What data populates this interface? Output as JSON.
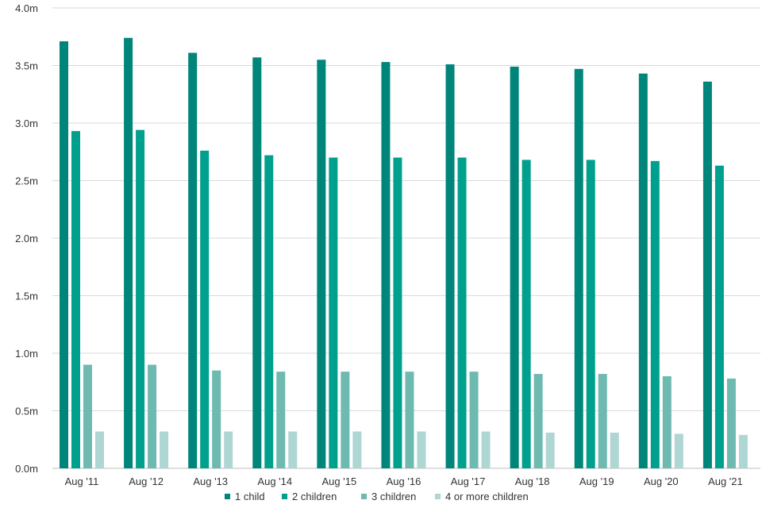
{
  "chart_data": {
    "type": "bar",
    "categories": [
      "Aug '11",
      "Aug '12",
      "Aug '13",
      "Aug '14",
      "Aug '15",
      "Aug '16",
      "Aug '17",
      "Aug '18",
      "Aug '19",
      "Aug '20",
      "Aug '21"
    ],
    "series": [
      {
        "name": "1 child",
        "color": "#00857a",
        "values": [
          3.71,
          3.74,
          3.61,
          3.57,
          3.55,
          3.53,
          3.51,
          3.49,
          3.47,
          3.43,
          3.36
        ]
      },
      {
        "name": "2 children",
        "color": "#00a08e",
        "values": [
          2.93,
          2.94,
          2.76,
          2.72,
          2.7,
          2.7,
          2.7,
          2.68,
          2.68,
          2.67,
          2.63
        ]
      },
      {
        "name": "3 children",
        "color": "#6eb9b0",
        "values": [
          0.9,
          0.9,
          0.85,
          0.84,
          0.84,
          0.84,
          0.84,
          0.82,
          0.82,
          0.8,
          0.78
        ]
      },
      {
        "name": "4 or more children",
        "color": "#aed6d3",
        "values": [
          0.32,
          0.32,
          0.32,
          0.32,
          0.32,
          0.32,
          0.32,
          0.31,
          0.31,
          0.3,
          0.29
        ]
      }
    ],
    "y_ticks": [
      0.0,
      0.5,
      1.0,
      1.5,
      2.0,
      2.5,
      3.0,
      3.5,
      4.0
    ],
    "y_tick_labels": [
      "0.0m",
      "0.5m",
      "1.0m",
      "1.5m",
      "2.0m",
      "2.5m",
      "3.0m",
      "3.5m",
      "4.0m"
    ],
    "ylim": [
      0,
      4.0
    ],
    "title": "",
    "xlabel": "",
    "ylabel": "",
    "grid": true,
    "legend_position": "bottom",
    "grid_color": "#d9d9d9",
    "axis_color": "#bfbfbf"
  }
}
